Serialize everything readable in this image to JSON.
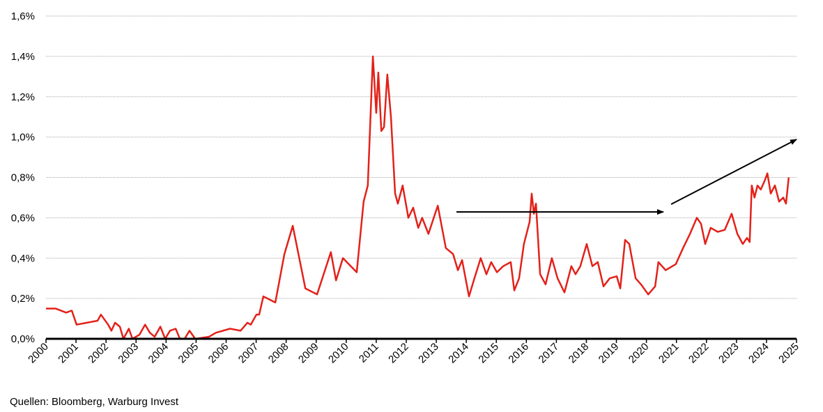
{
  "chart_data": {
    "type": "line",
    "source": "Quellen: Bloomberg, Warburg Invest",
    "color": "#e32119",
    "grid": true,
    "xlim": [
      2000,
      2025
    ],
    "xticks": [
      2000,
      2001,
      2002,
      2003,
      2004,
      2005,
      2006,
      2007,
      2008,
      2009,
      2010,
      2011,
      2012,
      2013,
      2014,
      2015,
      2016,
      2017,
      2018,
      2019,
      2020,
      2021,
      2022,
      2023,
      2024,
      2025
    ],
    "ylim": [
      0,
      1.6
    ],
    "yticks": [
      {
        "value": 0,
        "label": "0,0%"
      },
      {
        "value": 0.2,
        "label": "0,2%"
      },
      {
        "value": 0.4,
        "label": "0,4%"
      },
      {
        "value": 0.6,
        "label": "0,6%"
      },
      {
        "value": 0.8,
        "label": "0,8%"
      },
      {
        "value": 1.0,
        "label": "1,0%"
      },
      {
        "value": 1.2,
        "label": "1,2%"
      },
      {
        "value": 1.4,
        "label": "1,4%"
      },
      {
        "value": 1.6,
        "label": "1,6%"
      }
    ],
    "x": [
      2000.0,
      2000.32,
      2000.67,
      2000.86,
      2001.02,
      2001.37,
      2001.72,
      2001.83,
      2002.07,
      2002.18,
      2002.3,
      2002.46,
      2002.58,
      2002.76,
      2002.88,
      2003.11,
      2003.3,
      2003.46,
      2003.62,
      2003.81,
      2003.97,
      2004.13,
      2004.32,
      2004.46,
      2004.62,
      2004.78,
      2004.97,
      2005.43,
      2005.66,
      2006.13,
      2006.48,
      2006.71,
      2006.82,
      2007.01,
      2007.1,
      2007.24,
      2007.64,
      2007.94,
      2008.22,
      2008.64,
      2009.03,
      2009.49,
      2009.66,
      2009.89,
      2010.35,
      2010.58,
      2010.72,
      2010.89,
      2011.0,
      2011.07,
      2011.17,
      2011.26,
      2011.37,
      2011.49,
      2011.63,
      2011.72,
      2011.88,
      2012.07,
      2012.23,
      2012.4,
      2012.53,
      2012.74,
      2013.05,
      2013.32,
      2013.56,
      2013.72,
      2013.86,
      2014.09,
      2014.25,
      2014.48,
      2014.67,
      2014.83,
      2015.02,
      2015.23,
      2015.48,
      2015.6,
      2015.76,
      2015.92,
      2016.11,
      2016.18,
      2016.25,
      2016.32,
      2016.46,
      2016.64,
      2016.85,
      2017.04,
      2017.27,
      2017.5,
      2017.64,
      2017.8,
      2018.01,
      2018.2,
      2018.38,
      2018.57,
      2018.78,
      2019.01,
      2019.13,
      2019.29,
      2019.43,
      2019.64,
      2019.82,
      2020.06,
      2020.29,
      2020.4,
      2020.64,
      2020.98,
      2021.22,
      2021.45,
      2021.68,
      2021.82,
      2021.96,
      2022.14,
      2022.38,
      2022.61,
      2022.84,
      2023.03,
      2023.21,
      2023.35,
      2023.44,
      2023.51,
      2023.6,
      2023.7,
      2023.81,
      2023.93,
      2024.03,
      2024.14,
      2024.28,
      2024.42,
      2024.56,
      2024.65,
      2024.74
    ],
    "values": [
      0.15,
      0.15,
      0.13,
      0.14,
      0.07,
      0.08,
      0.09,
      0.12,
      0.07,
      0.04,
      0.08,
      0.06,
      0.0,
      0.05,
      0.0,
      0.02,
      0.07,
      0.03,
      0.01,
      0.06,
      0.0,
      0.04,
      0.05,
      0.0,
      0.0,
      0.04,
      0.0,
      0.01,
      0.03,
      0.05,
      0.04,
      0.08,
      0.07,
      0.12,
      0.12,
      0.21,
      0.18,
      0.42,
      0.56,
      0.25,
      0.22,
      0.43,
      0.29,
      0.4,
      0.33,
      0.68,
      0.76,
      1.4,
      1.12,
      1.32,
      1.03,
      1.05,
      1.31,
      1.1,
      0.72,
      0.67,
      0.76,
      0.6,
      0.65,
      0.55,
      0.6,
      0.52,
      0.66,
      0.45,
      0.42,
      0.34,
      0.39,
      0.21,
      0.29,
      0.4,
      0.32,
      0.38,
      0.33,
      0.36,
      0.38,
      0.24,
      0.3,
      0.47,
      0.58,
      0.72,
      0.62,
      0.67,
      0.32,
      0.27,
      0.4,
      0.3,
      0.23,
      0.36,
      0.32,
      0.36,
      0.47,
      0.36,
      0.38,
      0.26,
      0.3,
      0.31,
      0.25,
      0.49,
      0.47,
      0.3,
      0.27,
      0.22,
      0.26,
      0.38,
      0.34,
      0.37,
      0.45,
      0.52,
      0.6,
      0.57,
      0.47,
      0.55,
      0.53,
      0.54,
      0.62,
      0.52,
      0.47,
      0.5,
      0.48,
      0.76,
      0.7,
      0.76,
      0.74,
      0.78,
      0.82,
      0.72,
      0.76,
      0.68,
      0.7,
      0.67,
      0.8
    ]
  }
}
